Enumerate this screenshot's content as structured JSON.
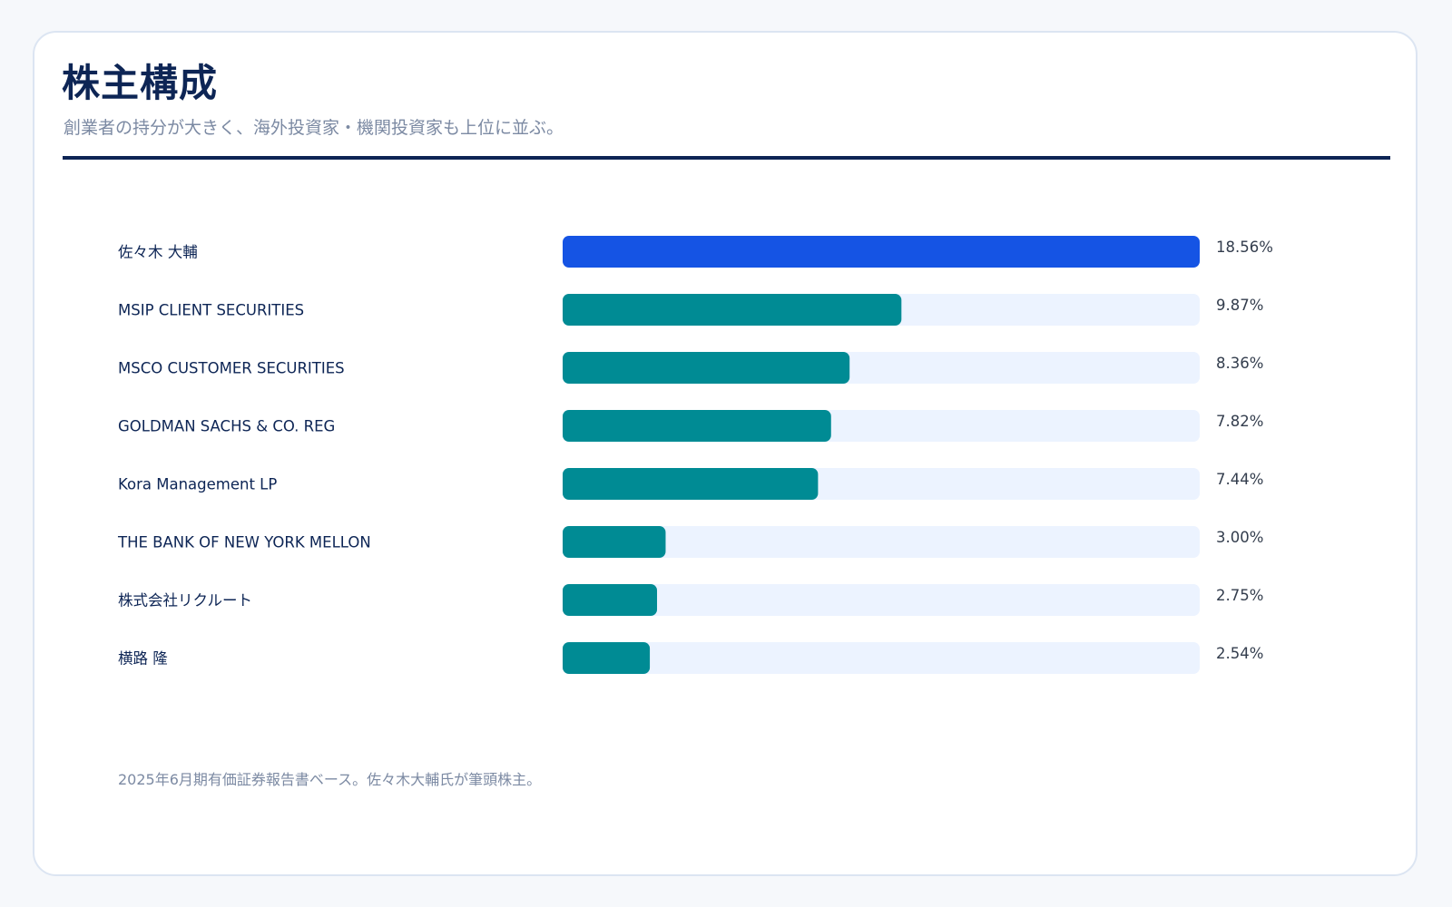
{
  "header": {
    "title": "株主構成",
    "subtitle": "創業者の持分が大きく、海外投資家・機関投資家も上位に並ぶ。"
  },
  "footnote": "2025年6月期有価証券報告書ベース。佐々木大輔氏が筆頭株主。",
  "colors": {
    "highlight_bar": "#1554e4",
    "bar": "#008b94",
    "track": "#ecf3ff",
    "title": "#0d2555",
    "muted_text": "#7c8aa3"
  },
  "chart_data": {
    "type": "bar",
    "orientation": "horizontal",
    "categories": [
      "佐々木 大輔",
      "MSIP CLIENT SECURITIES",
      "MSCO CUSTOMER SECURITIES",
      "GOLDMAN SACHS & CO. REG",
      "Kora Management LP",
      "THE BANK OF NEW YORK MELLON",
      "株式会社リクルート",
      "横路 隆"
    ],
    "values": [
      18.56,
      9.87,
      8.36,
      7.82,
      7.44,
      3.0,
      2.75,
      2.54
    ],
    "value_labels": [
      "18.56%",
      "9.87%",
      "8.36%",
      "7.82%",
      "7.44%",
      "3.00%",
      "2.75%",
      "2.54%"
    ],
    "unit": "%",
    "xlim": [
      0,
      18.56
    ],
    "highlight_index": 0,
    "grid": false,
    "legend": "none",
    "title": "",
    "xlabel": "",
    "ylabel": ""
  }
}
